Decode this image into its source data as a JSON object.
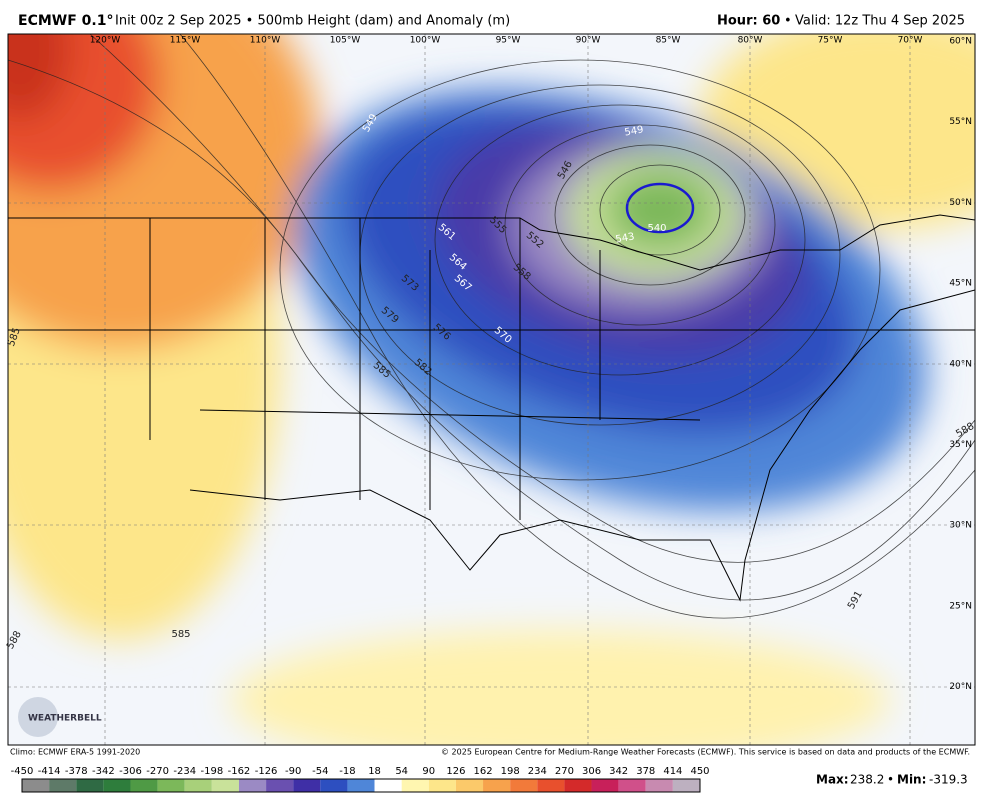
{
  "header": {
    "model": "ECMWF 0.1°",
    "run": "Init 00z 2 Sep 2025 • 500mb Height (dam) and Anomaly (m)",
    "hour": "Hour: 60",
    "separator": "•",
    "valid": "Valid: 12z Thu 4 Sep 2025"
  },
  "map": {
    "longitudes": [
      "120°W",
      "115°W",
      "110°W",
      "105°W",
      "100°W",
      "95°W",
      "90°W",
      "85°W",
      "80°W",
      "75°W",
      "70°W"
    ],
    "latitudes": [
      "60°N",
      "55°N",
      "50°N",
      "45°N",
      "40°N",
      "35°N",
      "30°N",
      "25°N",
      "20°N"
    ],
    "contour_labels": [
      "549",
      "549",
      "546",
      "540",
      "543",
      "555",
      "552",
      "558",
      "561",
      "564",
      "567",
      "573",
      "570",
      "576",
      "579",
      "582",
      "585",
      "585",
      "585",
      "588",
      "591",
      "588"
    ],
    "logo": "WEATHERBELL"
  },
  "footer": {
    "climo": "Climo: ECMWF ERA-5 1991-2020",
    "copyright": "© 2025 European Centre for Medium-Range Weather Forecasts (ECMWF). This service is based on data and products of the ECMWF.",
    "max_label": "Max:",
    "max": 238.2,
    "separator": "•",
    "min_label": "Min:",
    "min": -319.3
  },
  "colorbar": {
    "ticks": [
      -450,
      -414,
      -378,
      -342,
      -306,
      -270,
      -234,
      -198,
      -162,
      -126,
      -90,
      -54,
      -18,
      18,
      54,
      90,
      126,
      162,
      198,
      234,
      270,
      306,
      342,
      378,
      414,
      450
    ],
    "colors": [
      "#8c8c8c",
      "#5e7a68",
      "#2f6a44",
      "#2e7d3c",
      "#4f9a45",
      "#7cb85a",
      "#a8d07a",
      "#c9e29a",
      "#9b8ac4",
      "#6a50b0",
      "#3f2fa6",
      "#2d4fc0",
      "#4f86d8",
      "#ffffff",
      "#fff6b0",
      "#fde68a",
      "#fbc96a",
      "#f7a24c",
      "#f27a3a",
      "#e8502d",
      "#d42a2a",
      "#c8205a",
      "#d0508a",
      "#c88ab0",
      "#bdb0c0"
    ]
  }
}
